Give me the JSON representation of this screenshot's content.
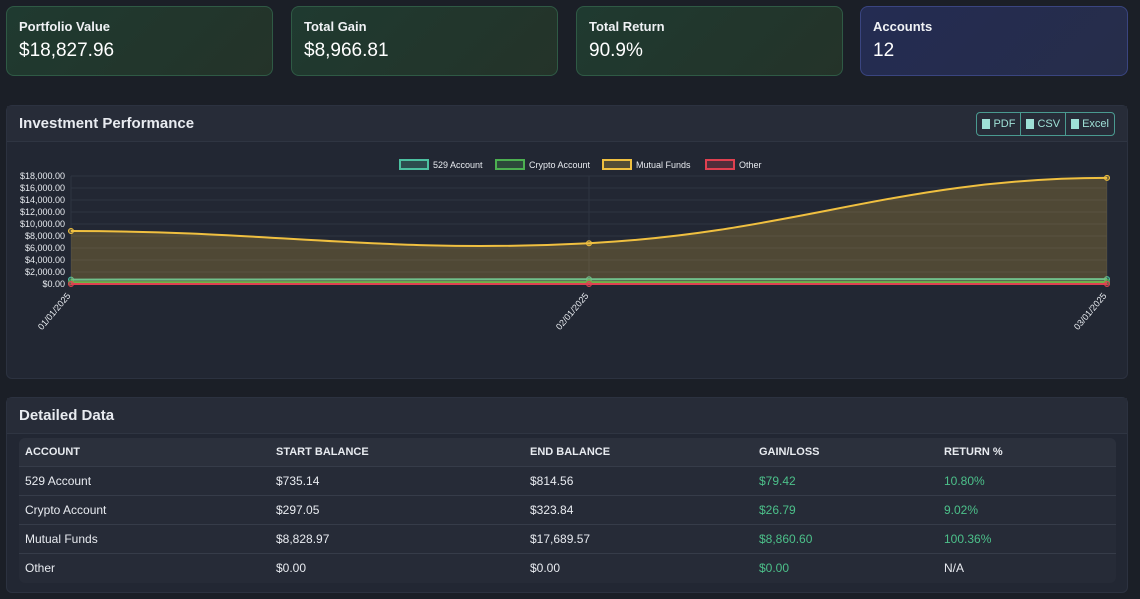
{
  "cards": [
    {
      "title": "Portfolio Value",
      "value": "$18,827.96"
    },
    {
      "title": "Total Gain",
      "value": "$8,966.81"
    },
    {
      "title": "Total Return",
      "value": "90.9%"
    },
    {
      "title": "Accounts",
      "value": "12"
    }
  ],
  "performance": {
    "title": "Investment Performance",
    "export": [
      "PDF",
      "CSV",
      "Excel"
    ]
  },
  "chart_data": {
    "type": "line",
    "x": [
      "01/01/2025",
      "02/01/2025",
      "03/01/2025"
    ],
    "ylim": [
      0,
      18000
    ],
    "yticks": [
      "$0.00",
      "$2,000.00",
      "$4,000.00",
      "$6,000.00",
      "$8,000.00",
      "$10,000.00",
      "$12,000.00",
      "$14,000.00",
      "$16,000.00",
      "$18,000.00"
    ],
    "legend": "top",
    "grid": true,
    "series": [
      {
        "name": "529 Account",
        "color": "#4cc0a0",
        "values": [
          735.14,
          800,
          814.56
        ]
      },
      {
        "name": "Crypto Account",
        "color": "#4caf50",
        "values": [
          297.05,
          310,
          323.84
        ]
      },
      {
        "name": "Mutual Funds",
        "color": "#f0c040",
        "values": [
          8828.97,
          6800,
          17689.57
        ]
      },
      {
        "name": "Other",
        "color": "#e04050",
        "values": [
          0,
          0,
          0
        ]
      }
    ]
  },
  "detail": {
    "title": "Detailed Data",
    "headers": [
      "ACCOUNT",
      "START BALANCE",
      "END BALANCE",
      "GAIN/LOSS",
      "RETURN %"
    ],
    "rows": [
      [
        "529 Account",
        "$735.14",
        "$814.56",
        "$79.42",
        "10.80%"
      ],
      [
        "Crypto Account",
        "$297.05",
        "$323.84",
        "$26.79",
        "9.02%"
      ],
      [
        "Mutual Funds",
        "$8,828.97",
        "$17,689.57",
        "$8,860.60",
        "100.36%"
      ],
      [
        "Other",
        "$0.00",
        "$0.00",
        "$0.00",
        "N/A"
      ]
    ]
  }
}
